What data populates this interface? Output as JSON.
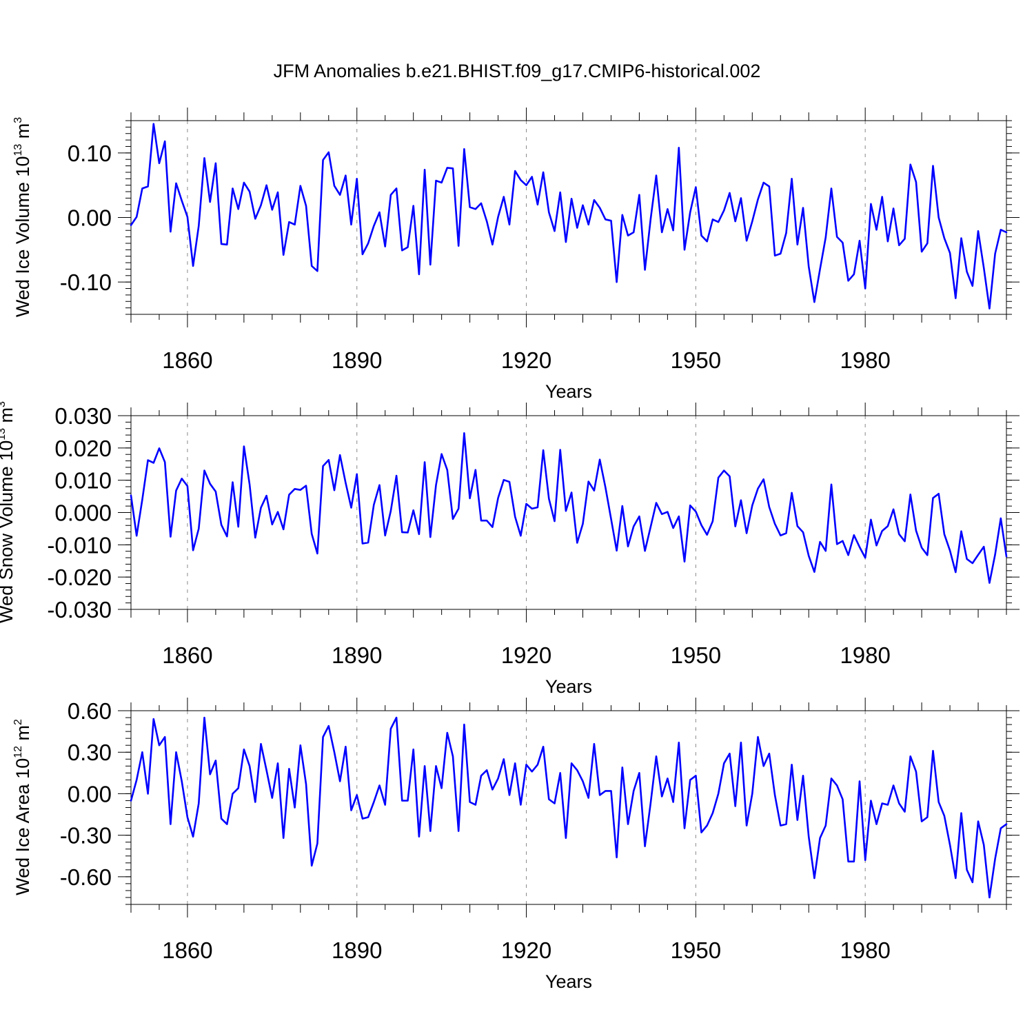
{
  "title": "JFM Anomalies b.e21.BHIST.f09_g17.CMIP6-historical.002",
  "colors": {
    "line": "#0000ff",
    "axis": "#000000",
    "grid": "#888888"
  },
  "chart_data": [
    {
      "type": "line",
      "name": "ice-volume",
      "title": "JFM Anomalies b.e21.BHIST.f09_g17.CMIP6-historical.002",
      "xlabel": "Years",
      "ylabel": {
        "main": "Wed Ice Volume 10",
        "exp": "13",
        "unit": " m",
        "unit_exp": "3"
      },
      "x_start": 1850,
      "xlim": [
        1850,
        2005
      ],
      "x_ticks": [
        1860,
        1890,
        1920,
        1950,
        1980
      ],
      "x_tick_labels": [
        "1860",
        "1890",
        "1920",
        "1950",
        "1980"
      ],
      "ylim": [
        -0.15,
        0.15
      ],
      "y_ticks": [
        0.1,
        0.0,
        -0.1
      ],
      "y_tick_labels": [
        "0.10",
        "0.00",
        "-0.10"
      ],
      "values": [
        -0.012,
        0.001,
        0.045,
        0.048,
        0.145,
        0.084,
        0.118,
        -0.022,
        0.053,
        0.026,
        0.001,
        -0.075,
        -0.013,
        0.092,
        0.024,
        0.084,
        -0.041,
        -0.042,
        0.045,
        0.013,
        0.054,
        0.04,
        -0.002,
        0.019,
        0.05,
        0.012,
        0.039,
        -0.058,
        -0.007,
        -0.011,
        0.049,
        0.018,
        -0.075,
        -0.083,
        0.089,
        0.101,
        0.049,
        0.035,
        0.065,
        -0.011,
        0.06,
        -0.057,
        -0.04,
        -0.013,
        0.008,
        -0.045,
        0.035,
        0.045,
        -0.051,
        -0.046,
        0.018,
        -0.088,
        0.074,
        -0.073,
        0.057,
        0.054,
        0.077,
        0.076,
        -0.044,
        0.106,
        0.016,
        0.013,
        0.022,
        -0.006,
        -0.042,
        0.001,
        0.032,
        -0.011,
        0.072,
        0.058,
        0.05,
        0.063,
        0.02,
        0.07,
        0.008,
        -0.021,
        0.039,
        -0.038,
        0.029,
        -0.016,
        0.019,
        -0.011,
        0.027,
        0.015,
        -0.003,
        -0.005,
        -0.1,
        0.004,
        -0.028,
        -0.023,
        0.035,
        -0.081,
        -0.003,
        0.065,
        -0.023,
        0.013,
        -0.02,
        0.108,
        -0.05,
        0.008,
        0.047,
        -0.028,
        -0.037,
        -0.003,
        -0.007,
        0.011,
        0.038,
        -0.006,
        0.03,
        -0.036,
        -0.006,
        0.028,
        0.054,
        0.048,
        -0.059,
        -0.056,
        -0.024,
        0.06,
        -0.042,
        0.015,
        -0.076,
        -0.131,
        -0.08,
        -0.031,
        0.045,
        -0.03,
        -0.039,
        -0.098,
        -0.088,
        -0.036,
        -0.11,
        0.021,
        -0.019,
        0.032,
        -0.037,
        0.014,
        -0.043,
        -0.033,
        0.082,
        0.055,
        -0.053,
        -0.04,
        0.08,
        0.0,
        -0.032,
        -0.055,
        -0.125,
        -0.032,
        -0.084,
        -0.106,
        -0.021,
        -0.078,
        -0.141,
        -0.056,
        -0.019,
        -0.023
      ]
    },
    {
      "type": "line",
      "name": "snow-volume",
      "xlabel": "Years",
      "ylabel": {
        "main": "Wed Snow Volume 10",
        "exp": "13",
        "unit": " m",
        "unit_exp": "3"
      },
      "x_start": 1850,
      "xlim": [
        1850,
        2005
      ],
      "x_ticks": [
        1860,
        1890,
        1920,
        1950,
        1980
      ],
      "x_tick_labels": [
        "1860",
        "1890",
        "1920",
        "1950",
        "1980"
      ],
      "ylim": [
        -0.03,
        0.03
      ],
      "y_ticks": [
        0.03,
        0.02,
        0.01,
        0.0,
        -0.01,
        -0.02,
        -0.03
      ],
      "y_tick_labels": [
        "0.030",
        "0.020",
        "0.010",
        "0.000",
        "-0.010",
        "-0.020",
        "-0.030"
      ],
      "values": [
        0.0053,
        -0.0072,
        0.004,
        0.0162,
        0.0154,
        0.0199,
        0.0156,
        -0.0075,
        0.0068,
        0.0105,
        0.0082,
        -0.0117,
        -0.005,
        0.013,
        0.0089,
        0.0065,
        -0.0038,
        -0.0074,
        0.0094,
        -0.0044,
        0.0205,
        0.0087,
        -0.0078,
        0.0015,
        0.0052,
        -0.0037,
        0.0002,
        -0.0052,
        0.0055,
        0.0073,
        0.007,
        0.0083,
        -0.0066,
        -0.0127,
        0.0144,
        0.0163,
        0.0069,
        0.0178,
        0.0092,
        0.0015,
        0.0119,
        -0.0096,
        -0.0093,
        0.0024,
        0.0085,
        -0.0071,
        0.0005,
        0.0114,
        -0.0061,
        -0.0062,
        0.0007,
        -0.0067,
        0.0156,
        -0.0076,
        0.0085,
        0.0181,
        0.0132,
        -0.002,
        0.0012,
        0.0246,
        0.0044,
        0.0132,
        -0.0025,
        -0.0025,
        -0.0045,
        0.0045,
        0.0101,
        0.0095,
        -0.0013,
        -0.0072,
        0.0027,
        0.0012,
        0.0016,
        0.0193,
        0.0043,
        -0.0027,
        0.0194,
        0.0005,
        0.0062,
        -0.0094,
        -0.0035,
        0.0096,
        0.0068,
        0.0164,
        0.0078,
        -0.002,
        -0.0118,
        0.002,
        -0.0105,
        -0.0043,
        -0.0012,
        -0.0119,
        -0.0045,
        0.003,
        -0.0005,
        0.0002,
        -0.0048,
        -0.0012,
        -0.0152,
        0.0022,
        0.0003,
        -0.0039,
        -0.0069,
        -0.0027,
        0.0108,
        0.013,
        0.0112,
        -0.0043,
        0.0038,
        -0.0064,
        0.0022,
        0.0074,
        0.0103,
        0.0017,
        -0.0035,
        -0.0071,
        -0.0064,
        0.0061,
        -0.0042,
        -0.0061,
        -0.0134,
        -0.0184,
        -0.0091,
        -0.0119,
        0.0087,
        -0.0098,
        -0.0088,
        -0.0132,
        -0.007,
        -0.0107,
        -0.014,
        -0.0022,
        -0.0102,
        -0.0057,
        -0.0042,
        0.001,
        -0.0067,
        -0.0089,
        0.0056,
        -0.0056,
        -0.0109,
        -0.0132,
        0.0045,
        0.0058,
        -0.0067,
        -0.0118,
        -0.0185,
        -0.0058,
        -0.0144,
        -0.0157,
        -0.0131,
        -0.0106,
        -0.0218,
        -0.013,
        -0.0018,
        -0.0136
      ]
    },
    {
      "type": "line",
      "name": "ice-area",
      "xlabel": "Years",
      "ylabel": {
        "main": "Wed Ice Area 10",
        "exp": "12",
        "unit": " m",
        "unit_exp": "2"
      },
      "x_start": 1850,
      "xlim": [
        1850,
        2005
      ],
      "x_ticks": [
        1860,
        1890,
        1920,
        1950,
        1980
      ],
      "x_tick_labels": [
        "1860",
        "1890",
        "1920",
        "1950",
        "1980"
      ],
      "ylim": [
        -0.8,
        0.6
      ],
      "y_ticks": [
        0.6,
        0.3,
        0.0,
        -0.3,
        -0.6
      ],
      "y_tick_labels": [
        "0.60",
        "0.30",
        "0.00",
        "-0.30",
        "-0.60"
      ],
      "values": [
        -0.05,
        0.1,
        0.3,
        0.0,
        0.54,
        0.35,
        0.41,
        -0.22,
        0.3,
        0.09,
        -0.17,
        -0.31,
        -0.07,
        0.55,
        0.14,
        0.24,
        -0.18,
        -0.22,
        0.0,
        0.04,
        0.32,
        0.2,
        -0.06,
        0.36,
        0.17,
        -0.03,
        0.22,
        -0.32,
        0.18,
        -0.1,
        0.35,
        0.07,
        -0.52,
        -0.36,
        0.41,
        0.49,
        0.3,
        0.09,
        0.34,
        -0.12,
        -0.01,
        -0.18,
        -0.17,
        -0.06,
        0.06,
        -0.08,
        0.47,
        0.55,
        -0.05,
        -0.05,
        0.32,
        -0.31,
        0.2,
        -0.27,
        0.2,
        0.04,
        0.44,
        0.27,
        -0.27,
        0.5,
        -0.06,
        -0.08,
        0.13,
        0.17,
        0.03,
        0.11,
        0.25,
        -0.01,
        0.22,
        -0.08,
        0.21,
        0.16,
        0.21,
        0.34,
        -0.04,
        -0.07,
        0.15,
        -0.32,
        0.22,
        0.17,
        0.09,
        -0.03,
        0.36,
        -0.01,
        0.02,
        0.02,
        -0.46,
        0.19,
        -0.22,
        0.02,
        0.15,
        -0.38,
        -0.07,
        0.27,
        -0.02,
        0.11,
        -0.06,
        0.37,
        -0.25,
        0.1,
        0.13,
        -0.28,
        -0.23,
        -0.14,
        0.0,
        0.22,
        0.29,
        -0.09,
        0.37,
        -0.23,
        0.0,
        0.41,
        0.2,
        0.29,
        -0.01,
        -0.23,
        -0.22,
        0.21,
        -0.19,
        0.13,
        -0.31,
        -0.61,
        -0.32,
        -0.23,
        0.11,
        0.06,
        -0.04,
        -0.49,
        -0.49,
        0.09,
        -0.48,
        -0.05,
        -0.22,
        -0.07,
        -0.08,
        0.06,
        -0.07,
        -0.13,
        0.27,
        0.16,
        -0.2,
        -0.17,
        0.31,
        -0.06,
        -0.16,
        -0.37,
        -0.61,
        -0.14,
        -0.55,
        -0.64,
        -0.2,
        -0.37,
        -0.75,
        -0.47,
        -0.25,
        -0.22
      ]
    }
  ]
}
